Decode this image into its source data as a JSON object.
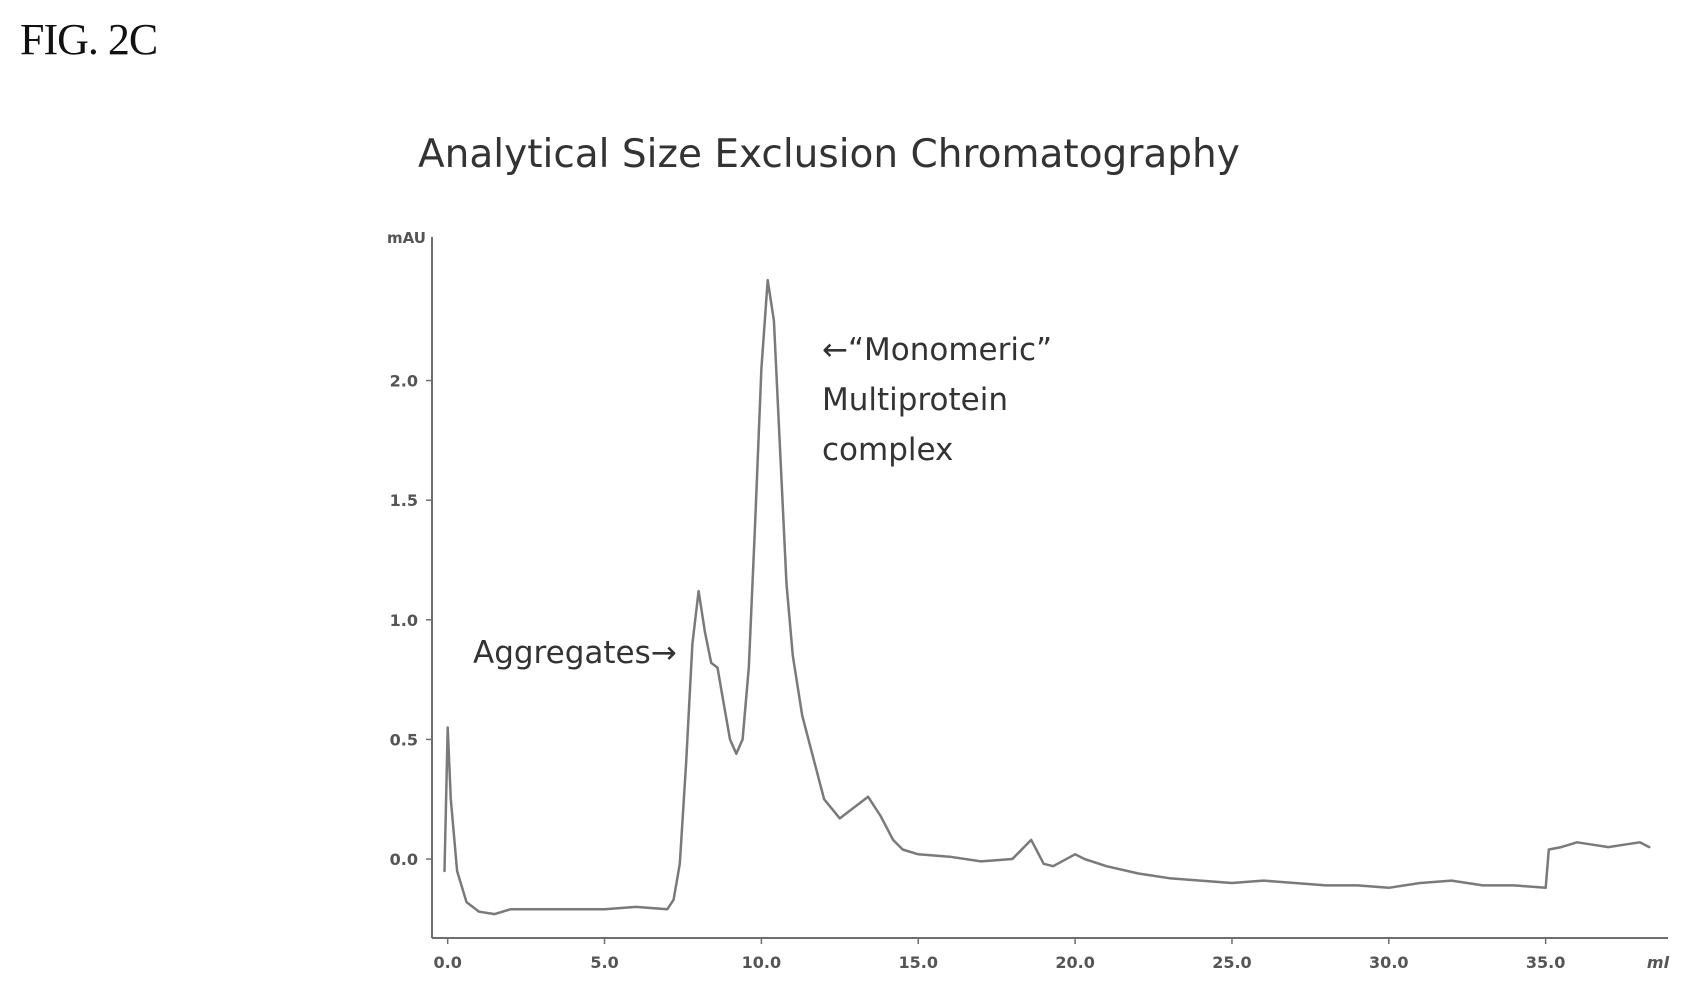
{
  "figure_label": "FIG. 2C",
  "chart_data": {
    "type": "line",
    "title": "Analytical Size Exclusion Chromatography",
    "xlabel": "ml",
    "ylabel": "mAU",
    "xlim": [
      -0.5,
      38.9
    ],
    "ylim": [
      -0.33,
      2.6
    ],
    "x_ticks": [
      0,
      5,
      10,
      15,
      20,
      25,
      30,
      35
    ],
    "x_tick_labels": [
      "0.0",
      "5.0",
      "10.0",
      "15.0",
      "20.0",
      "25.0",
      "30.0",
      "35.0"
    ],
    "y_ticks": [
      0,
      0.5,
      1.0,
      1.5,
      2.0
    ],
    "y_tick_labels": [
      "0.0",
      "0.5",
      "1.0",
      "1.5",
      "2.0"
    ],
    "grid": false,
    "legend": "none",
    "series": [
      {
        "color": "#7a7a7a",
        "x": [
          -0.1,
          0.0,
          0.1,
          0.3,
          0.6,
          1.0,
          1.5,
          2.0,
          3.0,
          4.0,
          5.0,
          6.0,
          7.0,
          7.2,
          7.4,
          7.6,
          7.8,
          8.0,
          8.2,
          8.4,
          8.6,
          8.8,
          9.0,
          9.2,
          9.4,
          9.6,
          9.8,
          10.0,
          10.2,
          10.4,
          10.6,
          10.8,
          11.0,
          11.3,
          11.7,
          12.0,
          12.5,
          13.0,
          13.4,
          13.8,
          14.2,
          14.5,
          15.0,
          16.0,
          17.0,
          18.0,
          18.6,
          18.8,
          19.0,
          19.3,
          20.0,
          20.3,
          21.0,
          22.0,
          23.0,
          24.0,
          25.0,
          26.0,
          27.0,
          28.0,
          29.0,
          30.0,
          31.0,
          32.0,
          33.0,
          34.0,
          35.0,
          35.1,
          35.5,
          36.0,
          36.5,
          37.0,
          37.5,
          38.0,
          38.3
        ],
        "y": [
          -0.05,
          0.55,
          0.25,
          -0.05,
          -0.18,
          -0.22,
          -0.23,
          -0.21,
          -0.21,
          -0.21,
          -0.21,
          -0.2,
          -0.21,
          -0.17,
          -0.02,
          0.4,
          0.9,
          1.12,
          0.95,
          0.82,
          0.8,
          0.65,
          0.5,
          0.44,
          0.5,
          0.8,
          1.4,
          2.05,
          2.42,
          2.25,
          1.7,
          1.15,
          0.85,
          0.6,
          0.4,
          0.25,
          0.17,
          0.22,
          0.26,
          0.18,
          0.08,
          0.04,
          0.02,
          0.01,
          -0.01,
          0.0,
          0.08,
          0.03,
          -0.02,
          -0.03,
          0.02,
          0.0,
          -0.03,
          -0.06,
          -0.08,
          -0.09,
          -0.1,
          -0.09,
          -0.1,
          -0.11,
          -0.11,
          -0.12,
          -0.1,
          -0.09,
          -0.11,
          -0.11,
          -0.12,
          0.04,
          0.05,
          0.07,
          0.06,
          0.05,
          0.06,
          0.07,
          0.05
        ]
      }
    ],
    "annotations": [
      {
        "text": "Aggregates→",
        "lines": [
          "Aggregates→"
        ]
      },
      {
        "text": "←“Monomeric” Multiprotein complex",
        "lines": [
          "←“Monomeric”",
          "Multiprotein",
          "complex"
        ]
      }
    ]
  }
}
